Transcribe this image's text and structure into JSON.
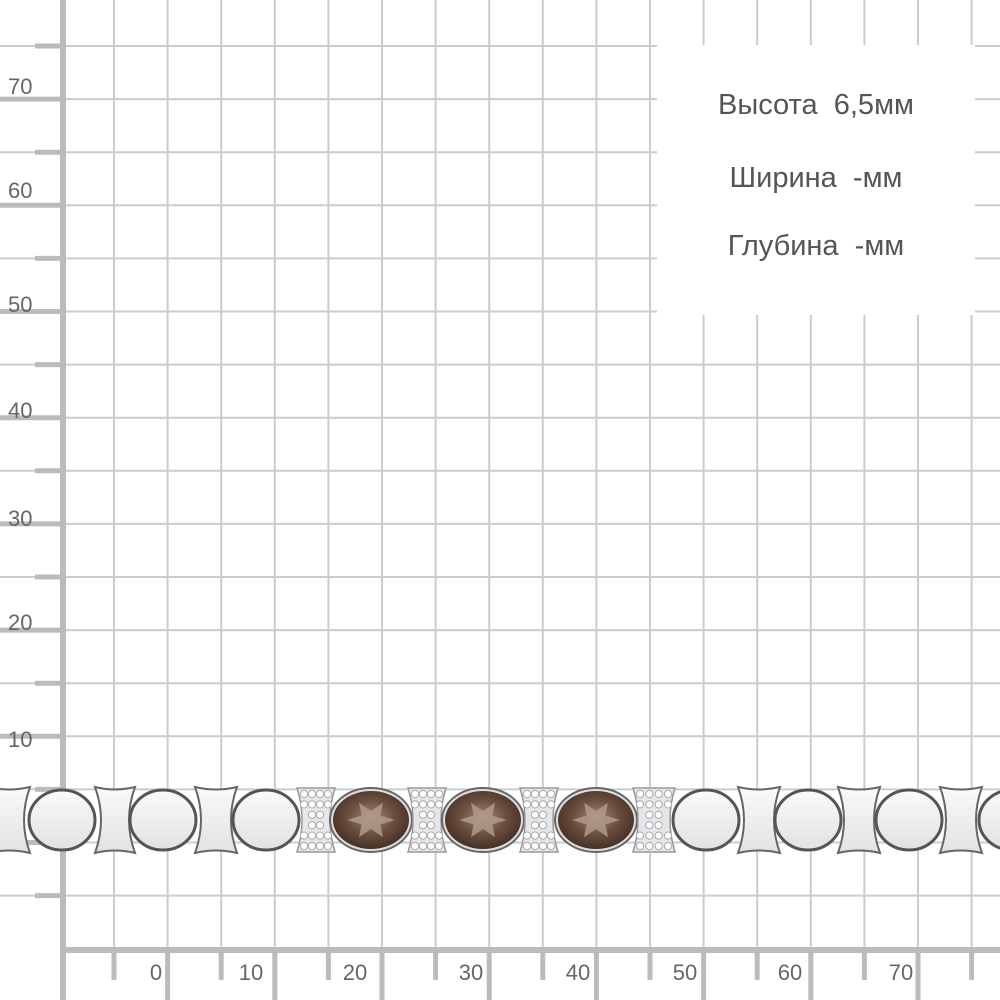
{
  "axis": {
    "y_labels": [
      "70",
      "60",
      "50",
      "40",
      "30",
      "20",
      "10"
    ],
    "x_labels": [
      "0",
      "10",
      "20",
      "30",
      "40",
      "50",
      "60",
      "70"
    ]
  },
  "info": {
    "height": "Высота  6,5мм",
    "width": "Ширина  -мм",
    "depth": "Глубина  -мм"
  },
  "colors": {
    "grid": "#cccccc",
    "axis": "#bbbbbb",
    "label": "#666666",
    "stone": "#5a4030",
    "metal": "#f2f2f2"
  },
  "product": {
    "type": "bracelet",
    "stones": "smoky quartz with cubic zirconia pavé"
  }
}
